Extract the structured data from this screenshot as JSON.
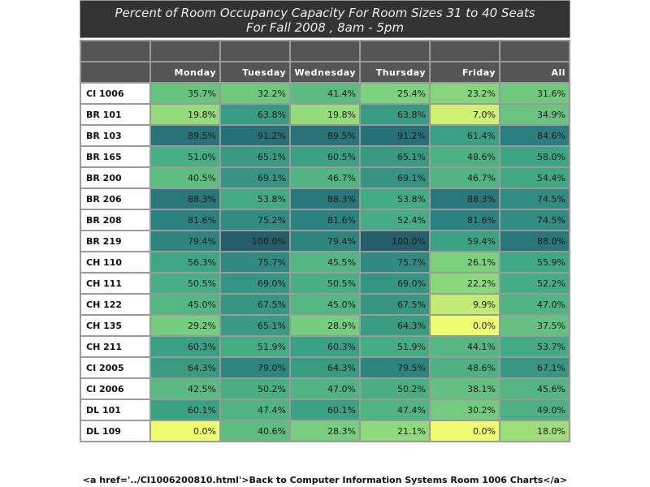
{
  "title": {
    "line1": "Percent of Room Occupancy Capacity For Room Sizes 31 to 40 Seats",
    "line2": "For Fall 2008  , 8am - 5pm"
  },
  "columns": [
    "Monday",
    "Tuesday",
    "Wednesday",
    "Thursday",
    "Friday",
    "All"
  ],
  "rows": [
    {
      "room": "CI 1006",
      "values": [
        "35.7%",
        "32.2%",
        "41.4%",
        "25.4%",
        "23.2%",
        "31.6%"
      ],
      "nums": [
        35.7,
        32.2,
        41.4,
        25.4,
        23.2,
        31.6
      ]
    },
    {
      "room": "BR 101",
      "values": [
        "19.8%",
        "63.8%",
        "19.8%",
        "63.8%",
        "7.0%",
        "34.9%"
      ],
      "nums": [
        19.8,
        63.8,
        19.8,
        63.8,
        7.0,
        34.9
      ]
    },
    {
      "room": "BR 103",
      "values": [
        "89.5%",
        "91.2%",
        "89.5%",
        "91.2%",
        "61.4%",
        "84.6%"
      ],
      "nums": [
        89.5,
        91.2,
        89.5,
        91.2,
        61.4,
        84.6
      ]
    },
    {
      "room": "BR 165",
      "values": [
        "51.0%",
        "65.1%",
        "60.5%",
        "65.1%",
        "48.6%",
        "58.0%"
      ],
      "nums": [
        51.0,
        65.1,
        60.5,
        65.1,
        48.6,
        58.0
      ]
    },
    {
      "room": "BR 200",
      "values": [
        "40.5%",
        "69.1%",
        "46.7%",
        "69.1%",
        "46.7%",
        "54.4%"
      ],
      "nums": [
        40.5,
        69.1,
        46.7,
        69.1,
        46.7,
        54.4
      ]
    },
    {
      "room": "BR 206",
      "values": [
        "88.3%",
        "53.8%",
        "88.3%",
        "53.8%",
        "88.3%",
        "74.5%"
      ],
      "nums": [
        88.3,
        53.8,
        88.3,
        53.8,
        88.3,
        74.5
      ]
    },
    {
      "room": "BR 208",
      "values": [
        "81.6%",
        "75.2%",
        "81.6%",
        "52.4%",
        "81.6%",
        "74.5%"
      ],
      "nums": [
        81.6,
        75.2,
        81.6,
        52.4,
        81.6,
        74.5
      ]
    },
    {
      "room": "BR 219",
      "values": [
        "79.4%",
        "100.0%",
        "79.4%",
        "100.0%",
        "59.4%",
        "88.0%"
      ],
      "nums": [
        79.4,
        100.0,
        79.4,
        100.0,
        59.4,
        88.0
      ]
    },
    {
      "room": "CH 110",
      "values": [
        "56.3%",
        "75.7%",
        "45.5%",
        "75.7%",
        "26.1%",
        "55.9%"
      ],
      "nums": [
        56.3,
        75.7,
        45.5,
        75.7,
        26.1,
        55.9
      ]
    },
    {
      "room": "CH 111",
      "values": [
        "50.5%",
        "69.0%",
        "50.5%",
        "69.0%",
        "22.2%",
        "52.2%"
      ],
      "nums": [
        50.5,
        69.0,
        50.5,
        69.0,
        22.2,
        52.2
      ]
    },
    {
      "room": "CH 122",
      "values": [
        "45.0%",
        "67.5%",
        "45.0%",
        "67.5%",
        "9.9%",
        "47.0%"
      ],
      "nums": [
        45.0,
        67.5,
        45.0,
        67.5,
        9.9,
        47.0
      ]
    },
    {
      "room": "CH 135",
      "values": [
        "29.2%",
        "65.1%",
        "28.9%",
        "64.3%",
        "0.0%",
        "37.5%"
      ],
      "nums": [
        29.2,
        65.1,
        28.9,
        64.3,
        0.0,
        37.5
      ]
    },
    {
      "room": "CH 211",
      "values": [
        "60.3%",
        "51.9%",
        "60.3%",
        "51.9%",
        "44.1%",
        "53.7%"
      ],
      "nums": [
        60.3,
        51.9,
        60.3,
        51.9,
        44.1,
        53.7
      ]
    },
    {
      "room": "CI 2005",
      "values": [
        "64.3%",
        "79.0%",
        "64.3%",
        "79.5%",
        "48.6%",
        "67.1%"
      ],
      "nums": [
        64.3,
        79.0,
        64.3,
        79.5,
        48.6,
        67.1
      ]
    },
    {
      "room": "CI 2006",
      "values": [
        "42.5%",
        "50.2%",
        "47.0%",
        "50.2%",
        "38.1%",
        "45.6%"
      ],
      "nums": [
        42.5,
        50.2,
        47.0,
        50.2,
        38.1,
        45.6
      ]
    },
    {
      "room": "DL 101",
      "values": [
        "60.1%",
        "47.4%",
        "60.1%",
        "47.4%",
        "30.2%",
        "49.0%"
      ],
      "nums": [
        60.1,
        47.4,
        60.1,
        47.4,
        30.2,
        49.0
      ]
    },
    {
      "room": "DL 109",
      "values": [
        "0.0%",
        "40.6%",
        "28.3%",
        "21.1%",
        "0.0%",
        "18.0%"
      ],
      "nums": [
        0.0,
        40.6,
        28.3,
        21.1,
        0.0,
        18.0
      ]
    }
  ],
  "footer_text": "<a href='../CI1006200810.html'>Back to Computer Information Systems Room 1006 Charts</a>",
  "colors": {
    "header_bg": "#555555",
    "title_bg": "#333333",
    "scale_low": "#eefc6f",
    "scale_mid_low": "#7fd27e",
    "scale_mid": "#3fa884",
    "scale_high": "#2a7d7f",
    "scale_max": "#265d6b"
  }
}
